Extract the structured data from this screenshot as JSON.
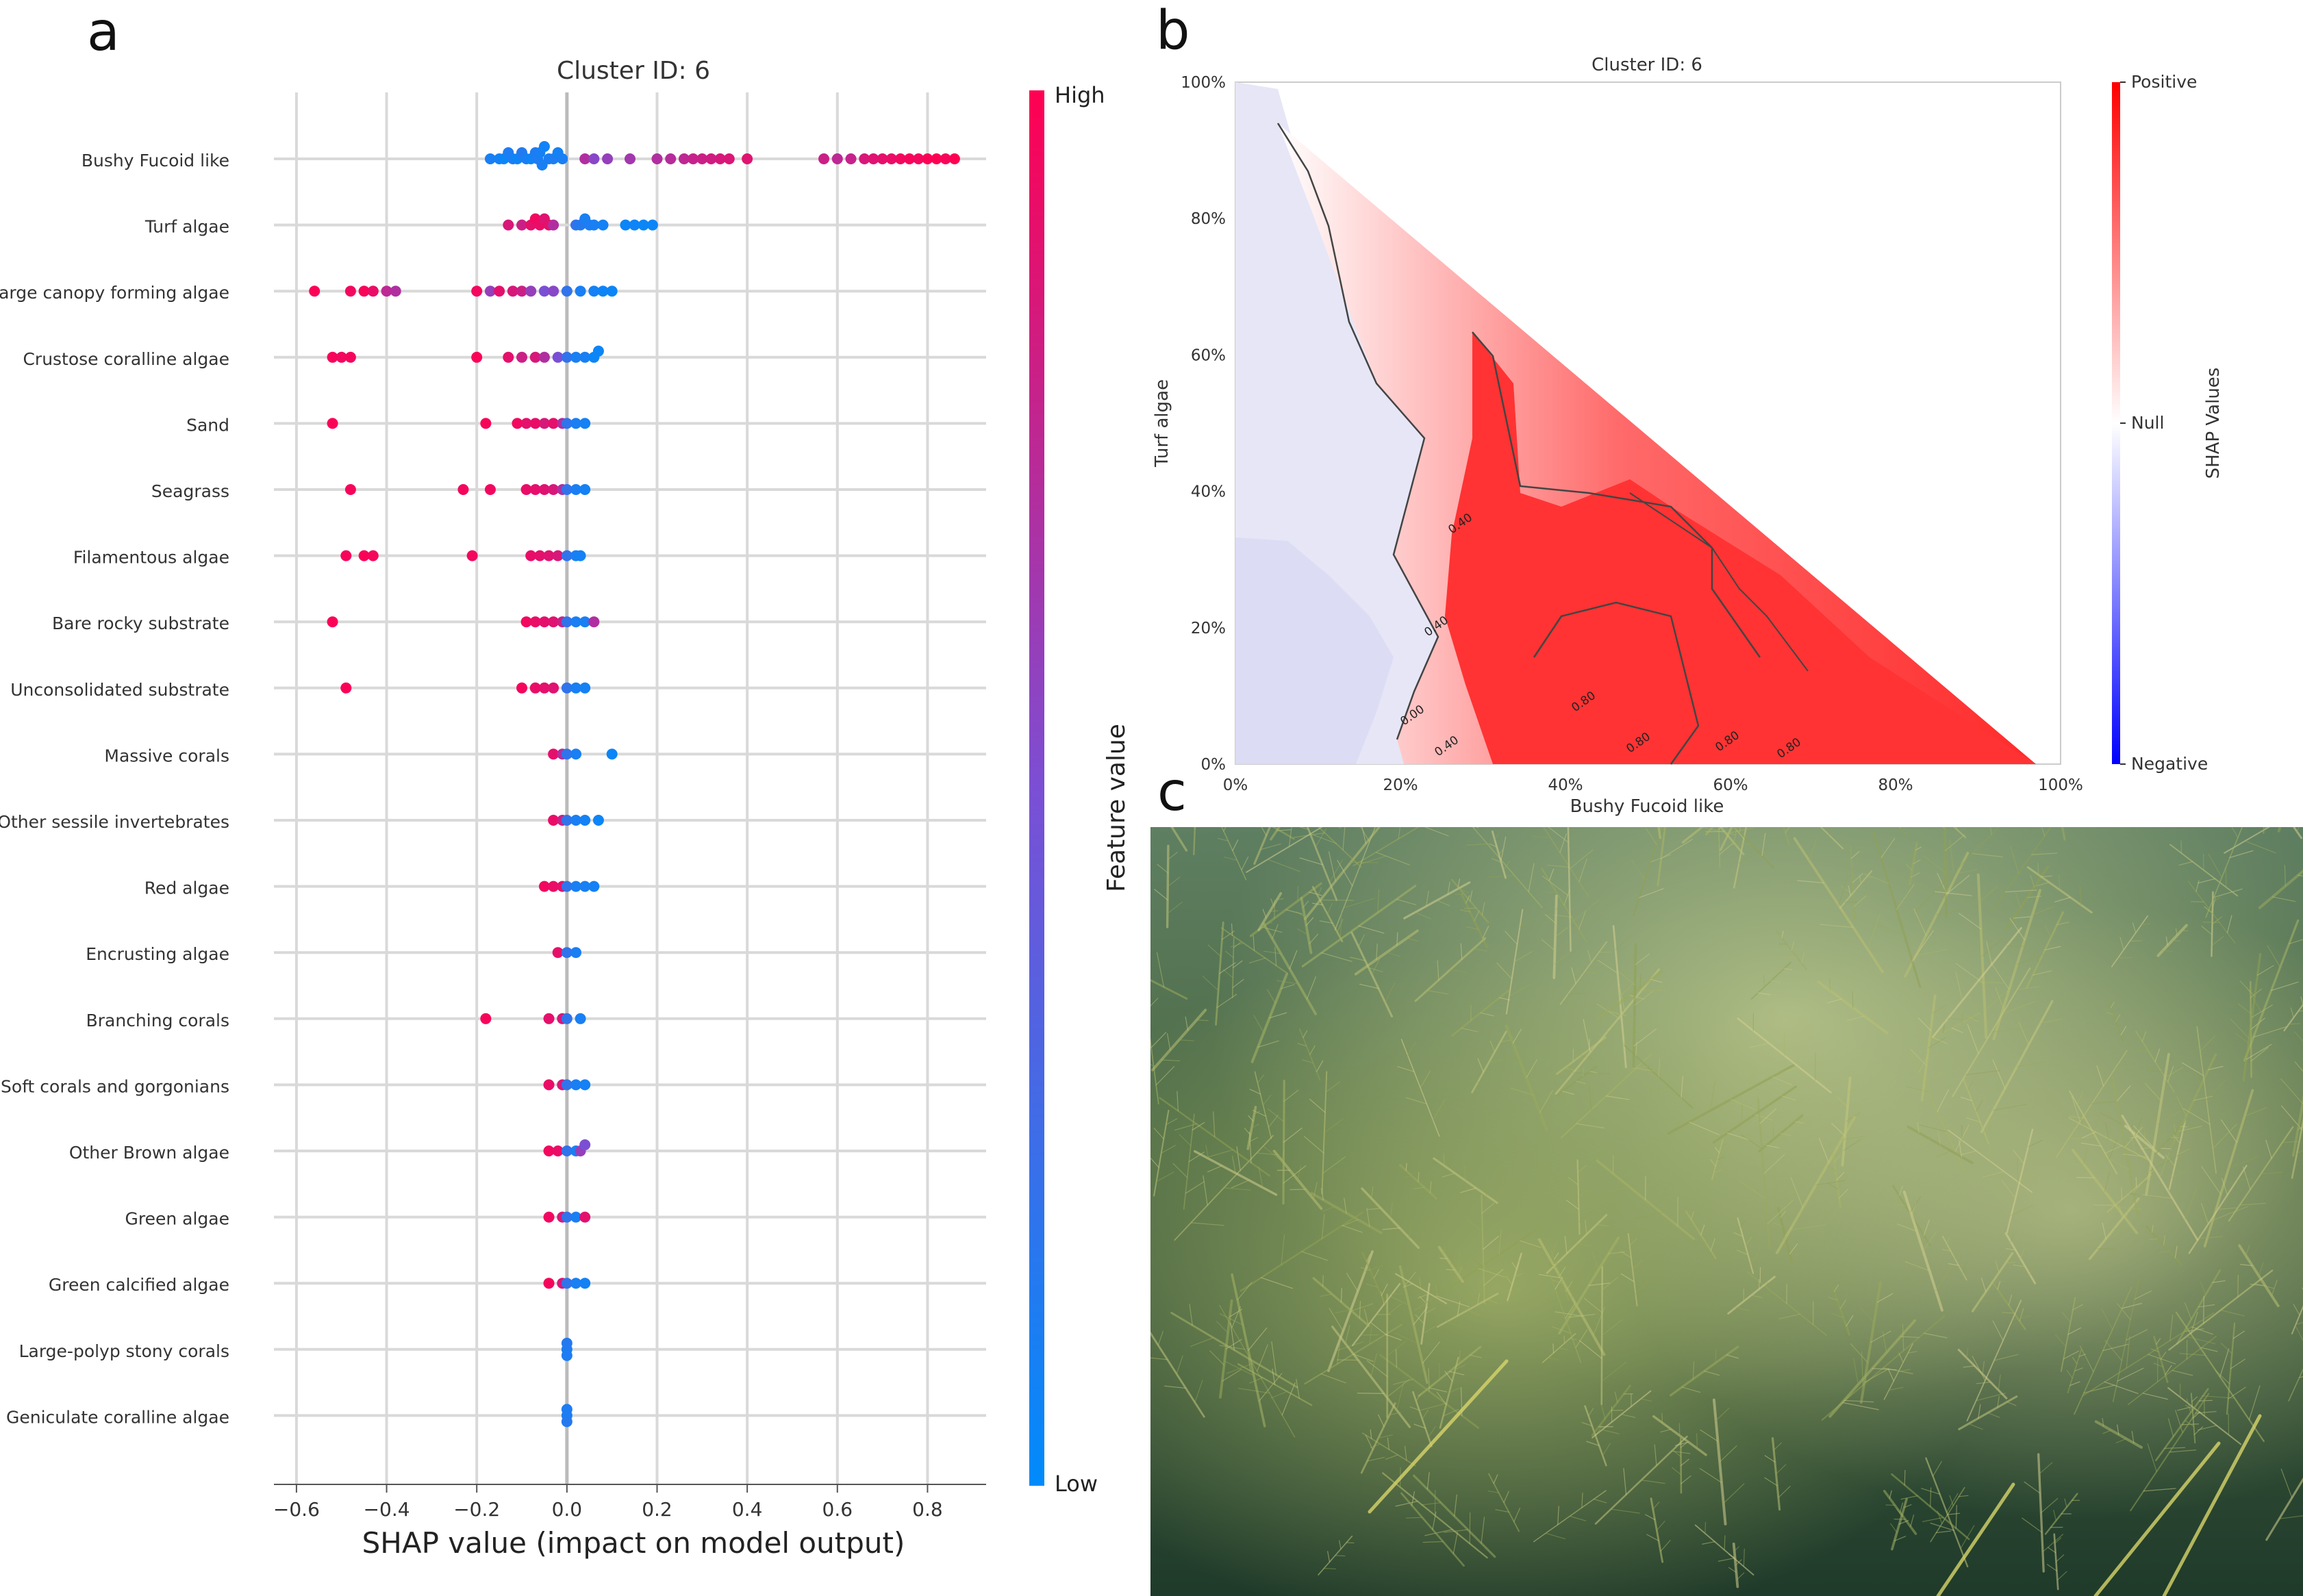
{
  "panels": {
    "a": "a",
    "b": "b",
    "c": "c"
  },
  "chart_data": [
    {
      "type": "scatter",
      "subtype": "shap-beeswarm",
      "title": "Cluster ID: 6",
      "xlabel": "SHAP value (impact on model output)",
      "ylabel": "",
      "xlim": [
        -0.65,
        0.93
      ],
      "xticks": [
        -0.6,
        -0.4,
        -0.2,
        0.0,
        0.2,
        0.4,
        0.6,
        0.8
      ],
      "xtick_labels": [
        "−0.6",
        "−0.4",
        "−0.2",
        "0.0",
        "0.2",
        "0.4",
        "0.6",
        "0.8"
      ],
      "grid": true,
      "colorbar": {
        "label": "Feature value",
        "high_label": "High",
        "low_label": "Low",
        "high_color": "#ff0052",
        "mid_color": "#7b4fd4",
        "low_color": "#008bfb"
      },
      "features": [
        {
          "name": "Bushy Fucoid like",
          "points": [
            [
              -0.17,
              0.1
            ],
            [
              -0.15,
              0.08
            ],
            [
              -0.14,
              0.05
            ],
            [
              -0.13,
              0.12
            ],
            [
              -0.12,
              0.1
            ],
            [
              -0.11,
              0.06
            ],
            [
              -0.1,
              0.14
            ],
            [
              -0.09,
              0.11
            ],
            [
              -0.08,
              0.06
            ],
            [
              -0.07,
              0.13
            ],
            [
              -0.065,
              0.12
            ],
            [
              -0.06,
              0.09
            ],
            [
              -0.055,
              0.1
            ],
            [
              -0.05,
              0.07
            ],
            [
              -0.04,
              0.1
            ],
            [
              -0.03,
              0.12
            ],
            [
              -0.02,
              0.08
            ],
            [
              -0.01,
              0.1
            ],
            [
              0.04,
              0.7
            ],
            [
              0.06,
              0.55
            ],
            [
              0.09,
              0.6
            ],
            [
              0.14,
              0.65
            ],
            [
              0.2,
              0.7
            ],
            [
              0.23,
              0.72
            ],
            [
              0.26,
              0.75
            ],
            [
              0.28,
              0.78
            ],
            [
              0.3,
              0.8
            ],
            [
              0.32,
              0.82
            ],
            [
              0.34,
              0.84
            ],
            [
              0.36,
              0.86
            ],
            [
              0.4,
              0.88
            ],
            [
              0.57,
              0.8
            ],
            [
              0.6,
              0.75
            ],
            [
              0.63,
              0.78
            ],
            [
              0.66,
              0.85
            ],
            [
              0.68,
              0.88
            ],
            [
              0.7,
              0.9
            ],
            [
              0.72,
              0.92
            ],
            [
              0.74,
              0.95
            ],
            [
              0.76,
              0.97
            ],
            [
              0.78,
              0.95
            ],
            [
              0.8,
              0.98
            ],
            [
              0.82,
              0.99
            ],
            [
              0.84,
              0.97
            ],
            [
              0.86,
              1.0
            ]
          ]
        },
        {
          "name": "Turf algae",
          "points": [
            [
              -0.13,
              0.85
            ],
            [
              -0.1,
              0.8
            ],
            [
              -0.08,
              0.9
            ],
            [
              -0.07,
              0.95
            ],
            [
              -0.06,
              0.92
            ],
            [
              -0.05,
              0.88
            ],
            [
              -0.04,
              0.9
            ],
            [
              -0.03,
              0.7
            ],
            [
              0.02,
              0.2
            ],
            [
              0.03,
              0.15
            ],
            [
              0.04,
              0.1
            ],
            [
              0.05,
              0.12
            ],
            [
              0.06,
              0.1
            ],
            [
              0.08,
              0.08
            ],
            [
              0.13,
              0.05
            ],
            [
              0.15,
              0.06
            ],
            [
              0.17,
              0.04
            ],
            [
              0.19,
              0.05
            ]
          ]
        },
        {
          "name": "Large canopy forming algae",
          "points": [
            [
              -0.56,
              0.98
            ],
            [
              -0.48,
              0.95
            ],
            [
              -0.45,
              0.97
            ],
            [
              -0.43,
              0.92
            ],
            [
              -0.4,
              0.75
            ],
            [
              -0.38,
              0.7
            ],
            [
              -0.2,
              0.95
            ],
            [
              -0.17,
              0.6
            ],
            [
              -0.15,
              0.9
            ],
            [
              -0.12,
              0.85
            ],
            [
              -0.1,
              0.8
            ],
            [
              -0.08,
              0.6
            ],
            [
              -0.05,
              0.5
            ],
            [
              -0.03,
              0.55
            ],
            [
              0.0,
              0.2
            ],
            [
              0.03,
              0.1
            ],
            [
              0.06,
              0.08
            ],
            [
              0.08,
              0.06
            ],
            [
              0.1,
              0.05
            ]
          ]
        },
        {
          "name": "Crustose coralline algae",
          "points": [
            [
              -0.52,
              0.97
            ],
            [
              -0.5,
              0.95
            ],
            [
              -0.48,
              0.96
            ],
            [
              -0.2,
              0.98
            ],
            [
              -0.13,
              0.9
            ],
            [
              -0.1,
              0.8
            ],
            [
              -0.07,
              0.85
            ],
            [
              -0.05,
              0.7
            ],
            [
              -0.02,
              0.5
            ],
            [
              0.0,
              0.2
            ],
            [
              0.02,
              0.1
            ],
            [
              0.04,
              0.1
            ],
            [
              0.06,
              0.05
            ],
            [
              0.07,
              0.05
            ]
          ]
        },
        {
          "name": "Sand",
          "points": [
            [
              -0.52,
              0.98
            ],
            [
              -0.18,
              0.97
            ],
            [
              -0.11,
              0.95
            ],
            [
              -0.09,
              0.9
            ],
            [
              -0.07,
              0.92
            ],
            [
              -0.05,
              0.85
            ],
            [
              -0.03,
              0.9
            ],
            [
              -0.01,
              0.7
            ],
            [
              0.0,
              0.2
            ],
            [
              0.02,
              0.1
            ],
            [
              0.04,
              0.08
            ]
          ]
        },
        {
          "name": "Seagrass",
          "points": [
            [
              -0.48,
              0.97
            ],
            [
              -0.23,
              0.96
            ],
            [
              -0.17,
              0.95
            ],
            [
              -0.09,
              0.92
            ],
            [
              -0.07,
              0.9
            ],
            [
              -0.05,
              0.88
            ],
            [
              -0.03,
              0.85
            ],
            [
              -0.01,
              0.7
            ],
            [
              0.0,
              0.2
            ],
            [
              0.02,
              0.1
            ],
            [
              0.04,
              0.08
            ]
          ]
        },
        {
          "name": "Filamentous algae",
          "points": [
            [
              -0.49,
              0.97
            ],
            [
              -0.45,
              0.98
            ],
            [
              -0.43,
              0.96
            ],
            [
              -0.21,
              0.95
            ],
            [
              -0.08,
              0.92
            ],
            [
              -0.06,
              0.9
            ],
            [
              -0.04,
              0.88
            ],
            [
              -0.02,
              0.85
            ],
            [
              0.0,
              0.2
            ],
            [
              0.02,
              0.1
            ],
            [
              0.03,
              0.08
            ]
          ]
        },
        {
          "name": "Bare rocky substrate",
          "points": [
            [
              -0.52,
              0.98
            ],
            [
              -0.09,
              0.95
            ],
            [
              -0.07,
              0.92
            ],
            [
              -0.05,
              0.9
            ],
            [
              -0.03,
              0.88
            ],
            [
              -0.01,
              0.8
            ],
            [
              0.0,
              0.2
            ],
            [
              0.02,
              0.1
            ],
            [
              0.04,
              0.1
            ],
            [
              0.06,
              0.7
            ]
          ]
        },
        {
          "name": "Unconsolidated substrate",
          "points": [
            [
              -0.49,
              0.98
            ],
            [
              -0.1,
              0.96
            ],
            [
              -0.07,
              0.92
            ],
            [
              -0.05,
              0.9
            ],
            [
              -0.03,
              0.88
            ],
            [
              0.0,
              0.2
            ],
            [
              0.02,
              0.1
            ],
            [
              0.04,
              0.08
            ]
          ]
        },
        {
          "name": "Massive corals",
          "points": [
            [
              -0.03,
              0.9
            ],
            [
              -0.01,
              0.7
            ],
            [
              0.0,
              0.2
            ],
            [
              0.02,
              0.1
            ],
            [
              0.1,
              0.05
            ]
          ]
        },
        {
          "name": "Other sessile invertebrates",
          "points": [
            [
              -0.03,
              0.92
            ],
            [
              -0.01,
              0.8
            ],
            [
              0.0,
              0.2
            ],
            [
              0.02,
              0.1
            ],
            [
              0.04,
              0.08
            ],
            [
              0.07,
              0.05
            ]
          ]
        },
        {
          "name": "Red algae",
          "points": [
            [
              -0.05,
              0.95
            ],
            [
              -0.03,
              0.92
            ],
            [
              -0.01,
              0.9
            ],
            [
              0.0,
              0.2
            ],
            [
              0.02,
              0.1
            ],
            [
              0.04,
              0.1
            ],
            [
              0.06,
              0.08
            ]
          ]
        },
        {
          "name": "Encrusting algae",
          "points": [
            [
              -0.02,
              0.9
            ],
            [
              0.0,
              0.2
            ],
            [
              0.02,
              0.1
            ]
          ]
        },
        {
          "name": "Branching corals",
          "points": [
            [
              -0.18,
              0.97
            ],
            [
              -0.04,
              0.9
            ],
            [
              -0.01,
              0.85
            ],
            [
              0.0,
              0.2
            ],
            [
              0.03,
              0.1
            ]
          ]
        },
        {
          "name": "Soft corals and gorgonians",
          "points": [
            [
              -0.04,
              0.92
            ],
            [
              -0.01,
              0.85
            ],
            [
              0.0,
              0.2
            ],
            [
              0.02,
              0.1
            ],
            [
              0.04,
              0.08
            ]
          ]
        },
        {
          "name": "Other Brown algae",
          "points": [
            [
              -0.04,
              0.95
            ],
            [
              -0.02,
              0.92
            ],
            [
              0.0,
              0.2
            ],
            [
              0.02,
              0.1
            ],
            [
              0.03,
              0.6
            ],
            [
              0.04,
              0.5
            ]
          ]
        },
        {
          "name": "Green algae",
          "points": [
            [
              -0.04,
              0.95
            ],
            [
              -0.01,
              0.85
            ],
            [
              0.0,
              0.2
            ],
            [
              0.02,
              0.1
            ],
            [
              0.04,
              0.9
            ]
          ]
        },
        {
          "name": "Green calcified algae",
          "points": [
            [
              -0.04,
              0.96
            ],
            [
              -0.01,
              0.85
            ],
            [
              0.0,
              0.2
            ],
            [
              0.02,
              0.1
            ],
            [
              0.04,
              0.08
            ]
          ]
        },
        {
          "name": "Large-polyp stony corals",
          "points": [
            [
              0.0,
              0.1
            ],
            [
              0.0,
              0.15
            ],
            [
              0.0,
              0.12
            ]
          ]
        },
        {
          "name": "Geniculate coralline algae",
          "points": [
            [
              0.0,
              0.1
            ],
            [
              0.0,
              0.12
            ],
            [
              0.0,
              0.15
            ]
          ]
        }
      ]
    },
    {
      "type": "heatmap",
      "subtype": "contour",
      "title": "Cluster ID: 6",
      "xlabel": "Bushy Fucoid like",
      "ylabel": "Turf algae",
      "xlim": [
        0,
        100
      ],
      "ylim": [
        0,
        100
      ],
      "xtick_labels": [
        "0%",
        "20%",
        "40%",
        "60%",
        "80%",
        "100%"
      ],
      "ytick_labels": [
        "0%",
        "20%",
        "40%",
        "60%",
        "80%",
        "100%"
      ],
      "colorbar": {
        "label": "SHAP Values",
        "top_label": "Positive",
        "mid_label": "Null",
        "bottom_label": "Negative",
        "positive_color": "#ff0000",
        "null_color": "#ffffff",
        "negative_color": "#0000ff"
      },
      "contour_labels": [
        "0.40",
        "0.40",
        "0.00",
        "0.40",
        "0.80",
        "0.80",
        "0.80",
        "0.80"
      ]
    }
  ],
  "photo": {
    "description_icon": "underwater-algae-photo"
  }
}
